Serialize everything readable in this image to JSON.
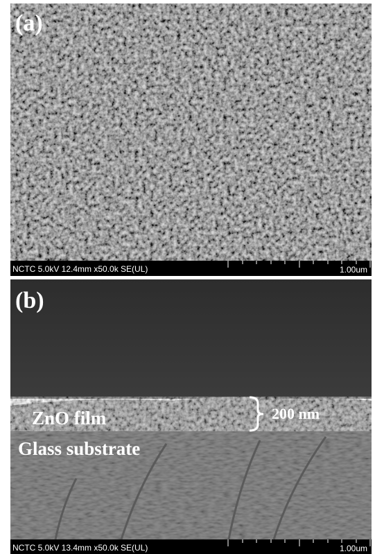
{
  "panels": [
    {
      "label": "(a)",
      "info": "NCTC 5.0kV 12.4mm x50.0k SE(UL)",
      "scale": "1.00um"
    },
    {
      "label": "(b)",
      "info": "NCTC 5.0kV 13.4mm x50.0k SE(UL)",
      "scale": "1.00um",
      "annotations": {
        "film": "ZnO film",
        "substrate": "Glass substrate",
        "thickness": "200 nm"
      }
    }
  ]
}
